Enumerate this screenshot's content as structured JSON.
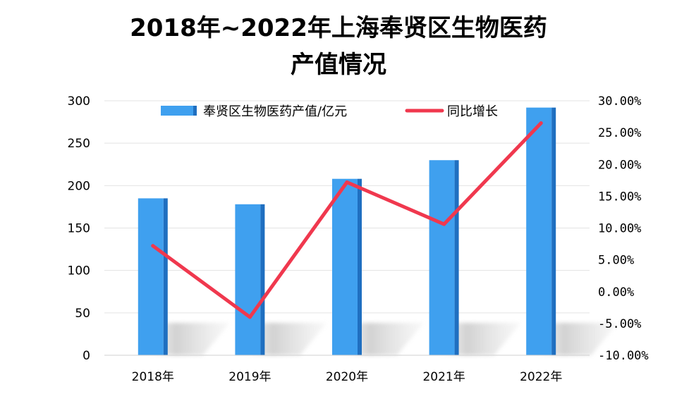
{
  "chart_data": {
    "type": "bar",
    "title_line1": "2018年~2022年上海奉贤区生物医药",
    "title_line2": "产值情况",
    "categories": [
      "2018年",
      "2019年",
      "2020年",
      "2021年",
      "2022年"
    ],
    "series": [
      {
        "name": "奉贤区生物医药产值/亿元",
        "type": "bar",
        "axis": "left",
        "values": [
          185,
          178,
          208,
          230,
          292
        ]
      },
      {
        "name": "同比增长",
        "type": "line",
        "axis": "right",
        "values": [
          0.072,
          -0.04,
          0.172,
          0.106,
          0.265
        ]
      }
    ],
    "y_left": {
      "ylim": [
        0,
        300
      ],
      "ticks": [
        "0",
        "50",
        "100",
        "150",
        "200",
        "250",
        "300"
      ]
    },
    "y_right": {
      "ylim": [
        -0.1,
        0.3
      ],
      "ticks": [
        "-10.00%",
        "-5.00%",
        "0.00%",
        "5.00%",
        "10.00%",
        "15.00%",
        "20.00%",
        "25.00%",
        "30.00%"
      ]
    },
    "legend": "top",
    "grid": true,
    "colors": {
      "bar": "#3fa0ef",
      "bar_side": "#1f6fc0",
      "line": "#f0384e",
      "grid": "#e3e3e3",
      "shadow": "#c8c8c8"
    }
  }
}
